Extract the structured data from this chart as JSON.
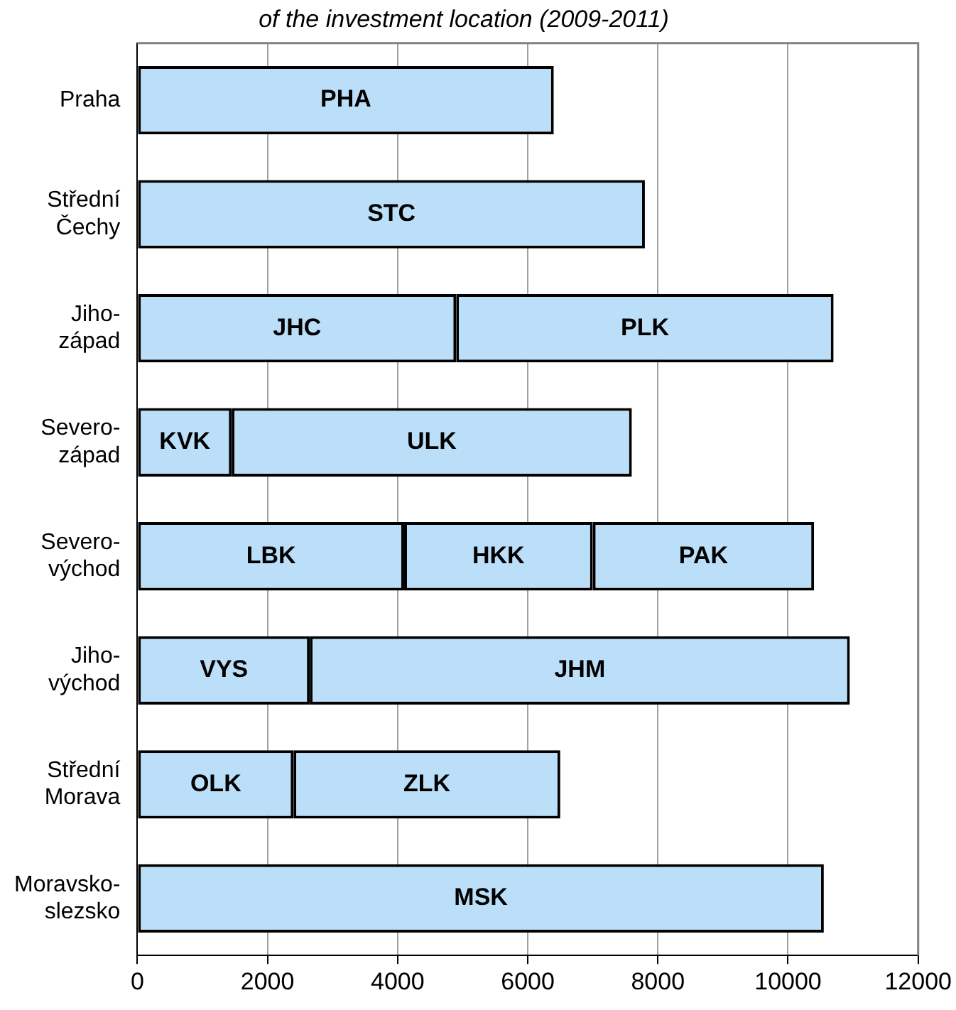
{
  "chart_data": {
    "type": "bar",
    "orientation": "horizontal",
    "stacked": true,
    "title": "of the investment location (2009-2011)",
    "categories": [
      "Praha",
      "Střední\nČechy",
      "Jiho-\nzápad",
      "Severo-\nzápad",
      "Severo-\nvýchod",
      "Jiho-\nvýchod",
      "Střední\nMorava",
      "Moravsko-\nslezsko"
    ],
    "series": [
      {
        "color": "#bcdff9",
        "values": [
          6400,
          7800,
          4900,
          1450,
          4100,
          2650,
          2400,
          10550
        ],
        "value_labels": [
          "PHA",
          "STC",
          "JHC",
          "KVK",
          "LBK",
          "VYS",
          "OLK",
          "MSK"
        ]
      },
      {
        "color": "#bcdff9",
        "values": [
          null,
          null,
          5800,
          6150,
          2900,
          8300,
          4100,
          null
        ],
        "value_labels": [
          null,
          null,
          "PLK",
          "ULK",
          "HKK",
          "JHM",
          "ZLK",
          null
        ]
      },
      {
        "color": "#bcdff9",
        "values": [
          null,
          null,
          null,
          null,
          3400,
          null,
          null,
          null
        ],
        "value_labels": [
          null,
          null,
          null,
          null,
          "PAK",
          null,
          null,
          null
        ]
      }
    ],
    "xlim": [
      0,
      12000
    ],
    "xticks": [
      0,
      2000,
      4000,
      6000,
      8000,
      10000,
      12000
    ],
    "grid": "x"
  }
}
